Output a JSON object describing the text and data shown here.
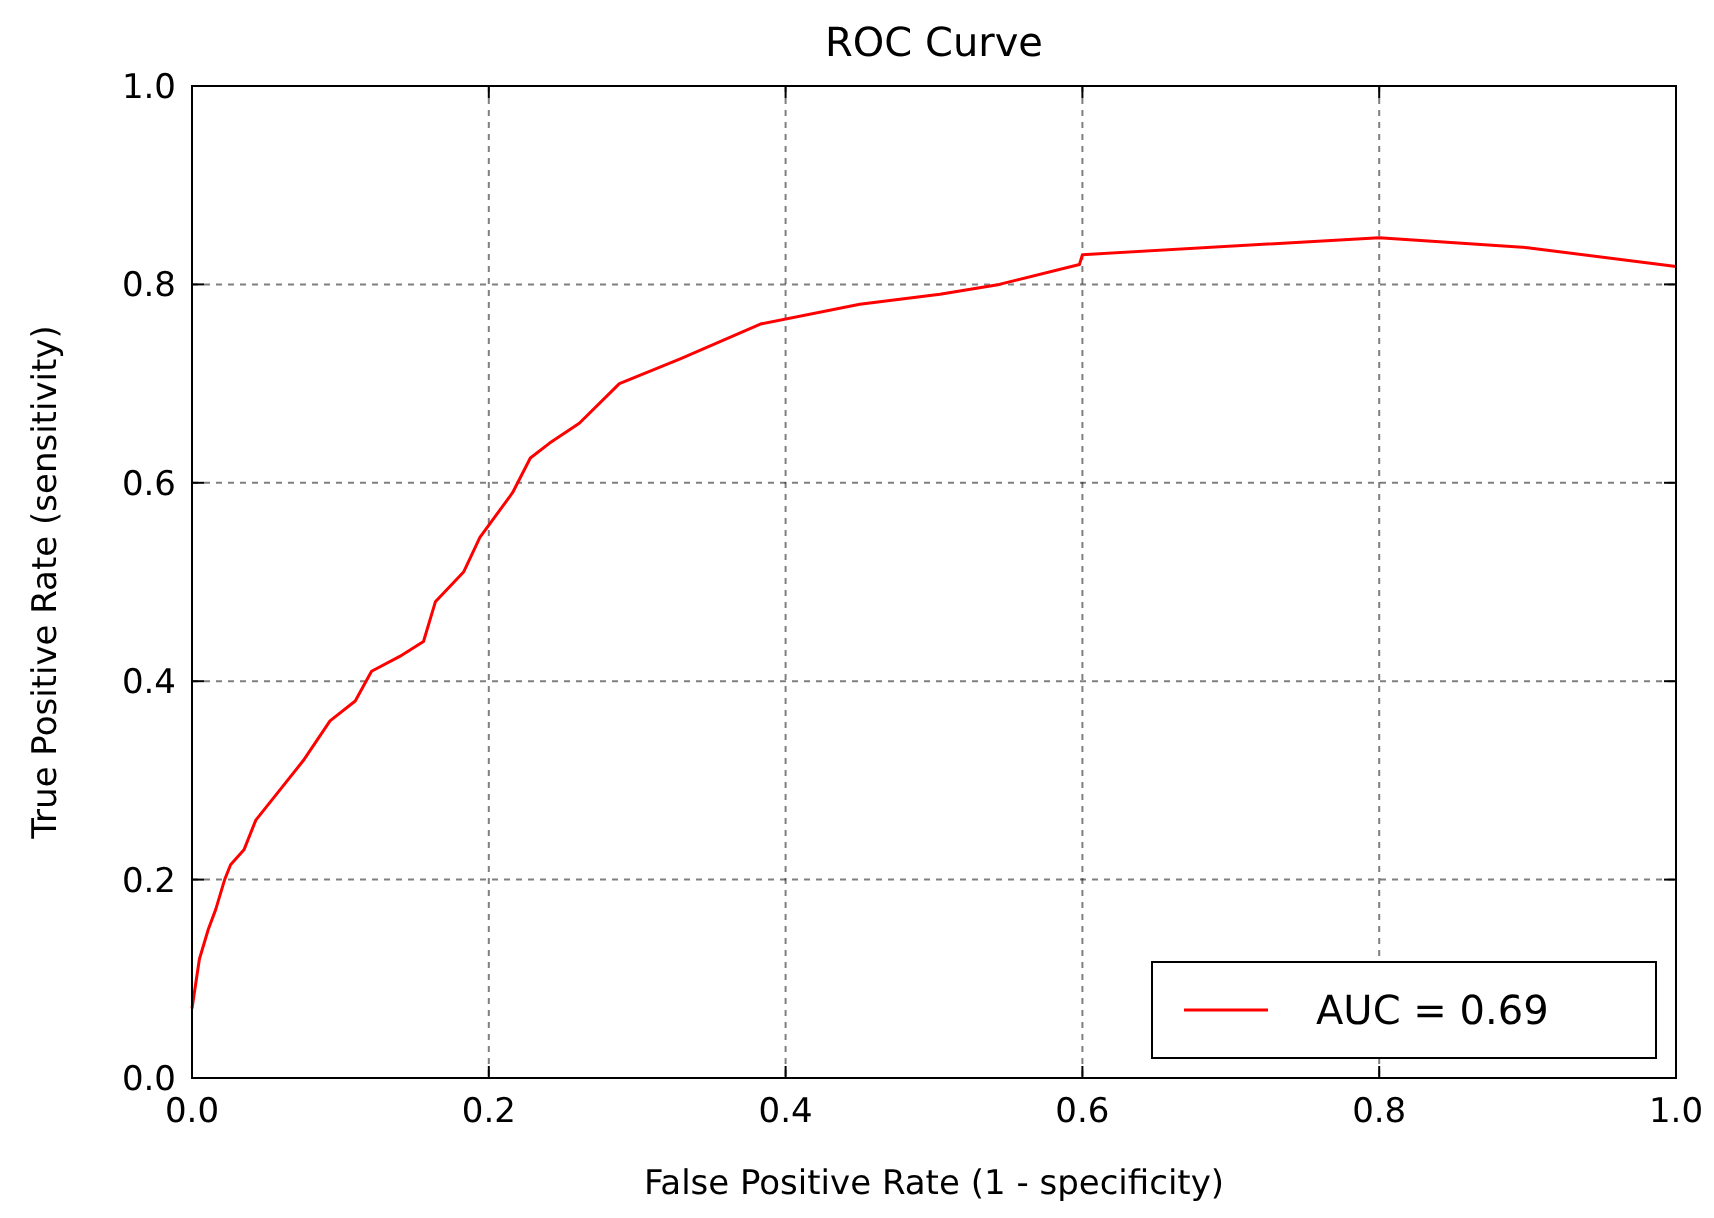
{
  "chart_data": {
    "type": "line",
    "title": "ROC Curve",
    "xlabel": "False Positive Rate (1 - specificity)",
    "ylabel": "True Positive Rate (sensitivity)",
    "xlim": [
      0,
      1
    ],
    "ylim": [
      0,
      1
    ],
    "xticks": [
      {
        "value": 0,
        "label": "0.0"
      },
      {
        "value": 0.2,
        "label": "0.2"
      },
      {
        "value": 0.4,
        "label": "0.4"
      },
      {
        "value": 0.6,
        "label": "0.6"
      },
      {
        "value": 0.8,
        "label": "0.8"
      },
      {
        "value": 1,
        "label": "1.0"
      }
    ],
    "yticks": [
      {
        "value": 0,
        "label": "0.0"
      },
      {
        "value": 0.2,
        "label": "0.2"
      },
      {
        "value": 0.4,
        "label": "0.4"
      },
      {
        "value": 0.6,
        "label": "0.6"
      },
      {
        "value": 0.8,
        "label": "0.8"
      },
      {
        "value": 1,
        "label": "1.0"
      }
    ],
    "grid": true,
    "legend": "bottom right",
    "series": [
      {
        "name": "AUC = 0.69",
        "color": "#ff0000",
        "x": [
          0,
          0.003,
          0.005,
          0.011,
          0.016,
          0.022,
          0.026,
          0.035,
          0.043,
          0.059,
          0.075,
          0.093,
          0.11,
          0.121,
          0.14,
          0.156,
          0.164,
          0.183,
          0.194,
          0.216,
          0.228,
          0.241,
          0.261,
          0.288,
          0.329,
          0.383,
          0.45,
          0.504,
          0.544,
          0.598,
          0.6,
          0.8,
          0.9,
          1
        ],
        "values": [
          0.07,
          0.1,
          0.12,
          0.15,
          0.17,
          0.2,
          0.215,
          0.23,
          0.26,
          0.29,
          0.32,
          0.36,
          0.38,
          0.41,
          0.425,
          0.44,
          0.48,
          0.51,
          0.545,
          0.59,
          0.625,
          0.64,
          0.66,
          0.7,
          0.725,
          0.76,
          0.78,
          0.79,
          0.8,
          0.82,
          0.83,
          0.847,
          0.837,
          0.818
        ]
      }
    ]
  }
}
